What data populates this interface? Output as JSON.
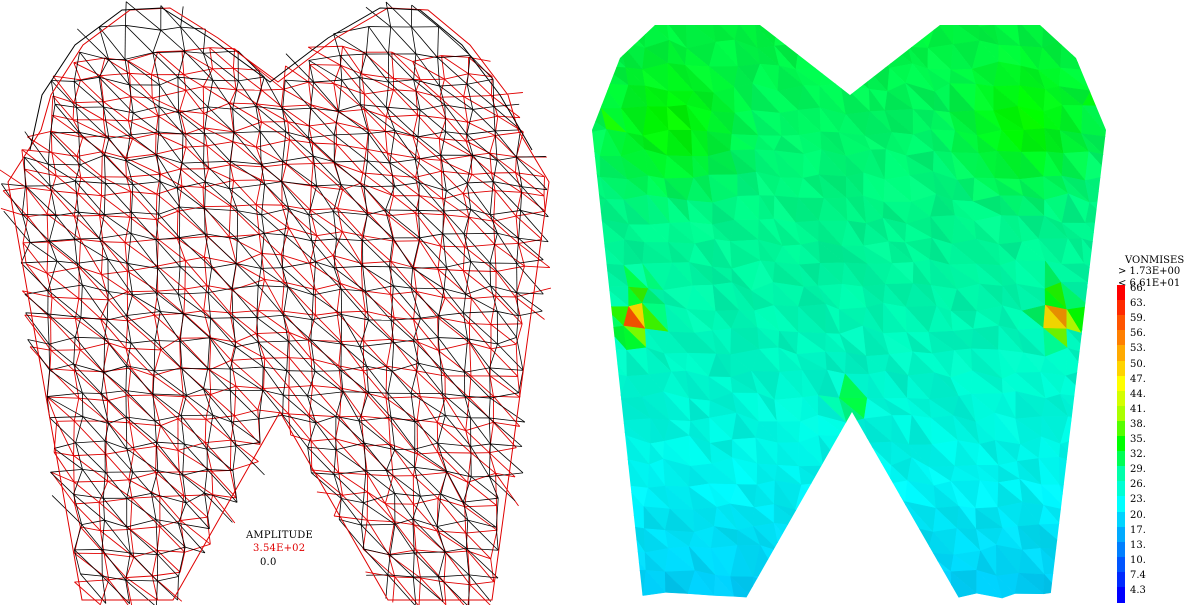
{
  "amplitude": {
    "title": "AMPLITUDE",
    "max": "3.54E+02",
    "min": "0.0",
    "max_color": "#e00000"
  },
  "vonmises": {
    "title": "VONMISES",
    "gt": "> 1.73E+00",
    "lt": "< 6.61E+01",
    "ticks": [
      "66.",
      "63.",
      "59.",
      "56.",
      "53.",
      "50.",
      "47.",
      "44.",
      "41.",
      "38.",
      "35.",
      "32.",
      "29.",
      "26.",
      "23.",
      "20.",
      "17.",
      "13.",
      "10.",
      "7.4",
      "4.3"
    ],
    "colors": [
      "#ff0000",
      "#ff2a00",
      "#ff5500",
      "#ff7f00",
      "#ffaa00",
      "#ffd400",
      "#ffff00",
      "#d4ff00",
      "#aaff00",
      "#55ff00",
      "#00ff00",
      "#00ff55",
      "#00ffaa",
      "#00ffd4",
      "#00ffff",
      "#00d4ff",
      "#00aaff",
      "#007fff",
      "#0055ff",
      "#002aff",
      "#0000ff"
    ]
  }
}
